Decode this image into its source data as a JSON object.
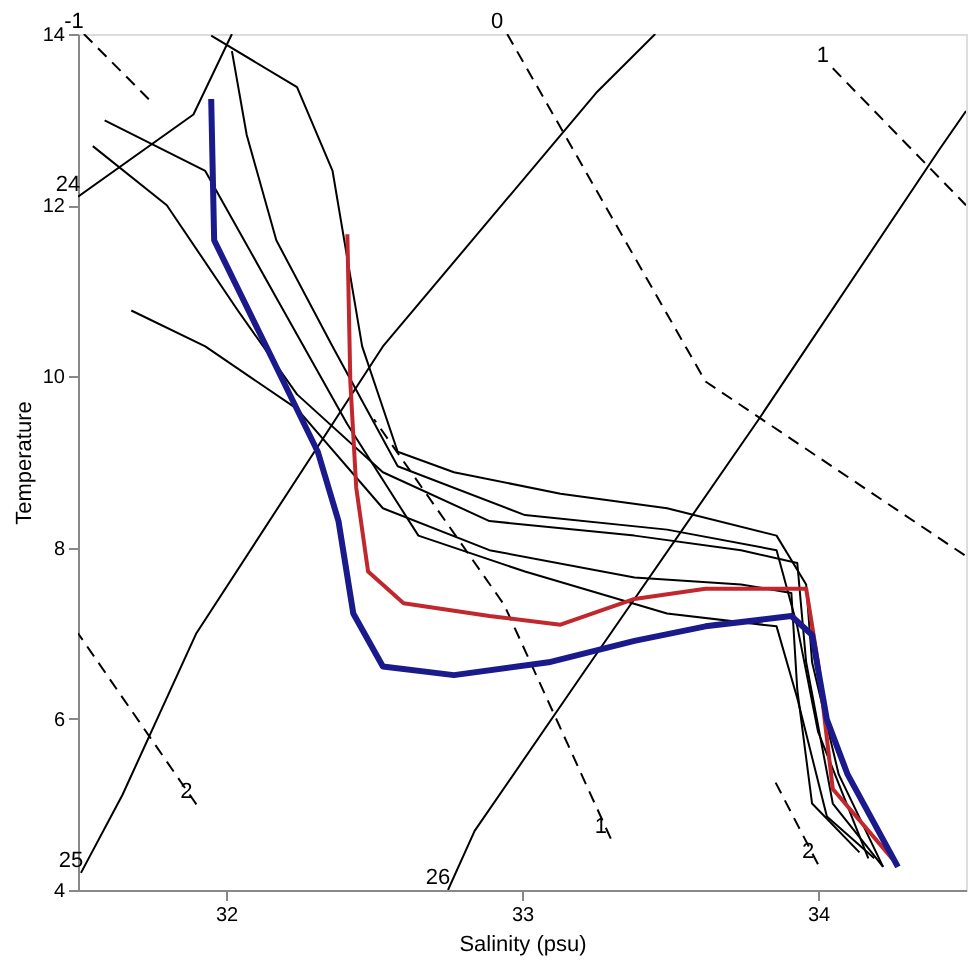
{
  "chart_data": {
    "type": "line",
    "xlabel": "Salinity (psu)",
    "ylabel": "Temperature",
    "xlim": [
      31.5,
      34.5
    ],
    "ylim": [
      4,
      14
    ],
    "xticks": [
      32,
      33,
      34
    ],
    "yticks": [
      4,
      6,
      8,
      10,
      12,
      14
    ],
    "grid": false,
    "marker": "none",
    "series": [
      {
        "name": "24",
        "color": "#000000",
        "line_style": "solid",
        "x": [
          31.5,
          31.89,
          32.02
        ],
        "values": [
          12.1,
          13.06,
          14
        ]
      },
      {
        "name": "25",
        "color": "#000000",
        "line_style": "solid",
        "x": [
          31.51,
          31.65,
          31.9,
          32.53,
          33.25,
          33.45
        ],
        "values": [
          4.2,
          5.11,
          7.0,
          10.35,
          13.31,
          14
        ]
      },
      {
        "name": "26",
        "color": "#000000",
        "line_style": "solid",
        "x": [
          32.75,
          32.84,
          33.2,
          33.8,
          34.41,
          34.5
        ],
        "values": [
          4,
          4.69,
          6.5,
          9.5,
          12.65,
          13.1
        ]
      },
      {
        "name": "-1",
        "color": "#000000",
        "line_style": "dashed",
        "x": [
          31.52,
          31.75
        ],
        "values": [
          14,
          13.2
        ]
      },
      {
        "name": "0",
        "color": "#000000",
        "line_style": "dashed",
        "x": [
          32.95,
          33.62,
          34.5
        ],
        "values": [
          14,
          9.94,
          7.9
        ]
      },
      {
        "name": "1",
        "color": "#000000",
        "line_style": "dashed",
        "x": [
          34.05,
          34.5
        ],
        "values": [
          13.6,
          12.0
        ]
      },
      {
        "name": "1",
        "color": "#000000",
        "line_style": "dashed",
        "x": [
          33.3,
          32.94,
          32.5
        ],
        "values": [
          4.6,
          7.33,
          9.5
        ]
      },
      {
        "name": "2",
        "color": "#000000",
        "line_style": "dashed",
        "x": [
          31.9,
          31.5
        ],
        "values": [
          5.0,
          7.0
        ]
      },
      {
        "name": "2",
        "color": "#000000",
        "line_style": "dashed",
        "x": [
          34.0,
          33.85
        ],
        "values": [
          4.3,
          5.3
        ]
      },
      {
        "color": "#000000",
        "line_style": "solid",
        "x": [
          31.95,
          32.24,
          32.36,
          32.46,
          32.58,
          32.77,
          33.13,
          33.49,
          33.86,
          33.96,
          33.98,
          34.07,
          34.22
        ],
        "values": [
          13.98,
          13.38,
          12.4,
          10.35,
          9.12,
          8.88,
          8.63,
          8.46,
          8.14,
          7.57,
          6.66,
          5.35,
          4.27
        ]
      },
      {
        "color": "#000000",
        "line_style": "solid",
        "x": [
          31.55,
          31.8,
          32.04,
          32.24,
          32.53,
          32.89,
          33.38,
          33.74,
          33.93,
          33.96,
          34.05,
          34.22
        ],
        "values": [
          12.69,
          12.0,
          10.77,
          9.79,
          8.88,
          8.31,
          8.14,
          7.97,
          7.82,
          6.66,
          5.01,
          4.27
        ]
      },
      {
        "color": "#000000",
        "line_style": "solid",
        "x": [
          31.68,
          31.93,
          32.24,
          32.53,
          32.89,
          33.38,
          33.74,
          33.91,
          33.93,
          33.98,
          34.14
        ],
        "values": [
          10.77,
          10.35,
          9.62,
          8.46,
          7.97,
          7.65,
          7.57,
          7.47,
          6.34,
          5.01,
          4.44
        ]
      },
      {
        "color": "#000000",
        "line_style": "solid",
        "x": [
          32.02,
          32.07,
          32.17,
          32.36,
          32.58,
          33.01,
          33.49,
          33.86,
          33.93,
          34.0,
          34.17
        ],
        "values": [
          13.8,
          12.82,
          11.59,
          10.35,
          8.95,
          8.38,
          8.21,
          7.97,
          7.08,
          5.85,
          4.37
        ]
      },
      {
        "color": "#000000",
        "line_style": "solid",
        "x": [
          31.59,
          31.93,
          32.17,
          32.41,
          32.65,
          33.01,
          33.49,
          33.86,
          33.93,
          34.03,
          34.19
        ],
        "values": [
          12.99,
          12.4,
          10.92,
          9.44,
          8.14,
          7.72,
          7.23,
          7.08,
          6.24,
          4.86,
          4.37
        ]
      },
      {
        "color": "#c0282d",
        "line_style": "solid",
        "x": [
          32.41,
          32.42,
          32.44,
          32.48,
          32.6,
          32.89,
          33.13,
          33.38,
          33.62,
          33.96,
          34.0,
          34.05,
          34.25
        ],
        "values": [
          11.66,
          9.94,
          8.7,
          7.72,
          7.35,
          7.2,
          7.1,
          7.4,
          7.52,
          7.52,
          6.66,
          5.18,
          4.37
        ]
      },
      {
        "color": "#1a1a8c",
        "line_style": "solid",
        "x": [
          31.95,
          31.96,
          32.17,
          32.31,
          32.38,
          32.43,
          32.53,
          32.77,
          33.09,
          33.38,
          33.62,
          33.91,
          33.98,
          34.03,
          34.1,
          34.27
        ],
        "values": [
          13.24,
          11.59,
          10.11,
          9.12,
          8.31,
          7.23,
          6.61,
          6.51,
          6.66,
          6.91,
          7.08,
          7.2,
          6.98,
          5.99,
          5.35,
          4.27
        ]
      }
    ]
  }
}
